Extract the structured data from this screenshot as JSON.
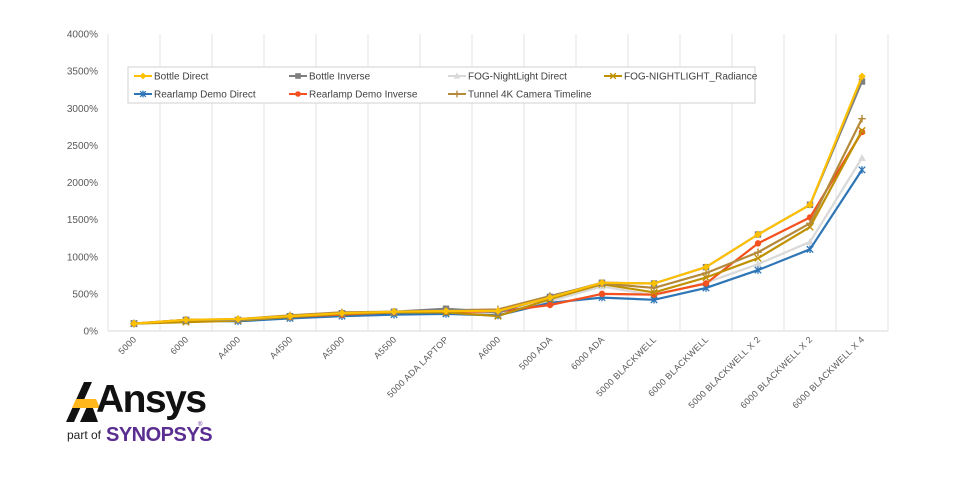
{
  "chart_data": {
    "type": "line",
    "categories": [
      "5000",
      "6000",
      "A4000",
      "A4500",
      "A5000",
      "A5500",
      "5000 ADA LAPTOP",
      "A6000",
      "5000 ADA",
      "6000 ADA",
      "5000 BLACKWELL",
      "6000 BLACKWELL",
      "5000 BLACKWELL X 2",
      "6000 BLACKWELL X 2",
      "6000 BLACKWELL X 4"
    ],
    "ylim": [
      0,
      4000
    ],
    "yticks": [
      "0%",
      "500%",
      "1000%",
      "1500%",
      "2000%",
      "2500%",
      "3000%",
      "3500%",
      "4000%"
    ],
    "ytick_values": [
      0,
      500,
      1000,
      1500,
      2000,
      2500,
      3000,
      3500,
      4000
    ],
    "grid": "vertical",
    "legend_position": "top-left",
    "series": [
      {
        "name": "Bottle Direct",
        "color": "#ffc000",
        "marker": "diamond",
        "values": [
          100,
          150,
          160,
          200,
          240,
          260,
          270,
          270,
          450,
          650,
          640,
          860,
          1300,
          1700,
          3430
        ]
      },
      {
        "name": "Bottle Inverse",
        "color": "#7f7f7f",
        "marker": "square",
        "values": [
          100,
          150,
          150,
          200,
          240,
          260,
          300,
          250,
          460,
          650,
          640,
          860,
          1300,
          1700,
          3360
        ]
      },
      {
        "name": "FOG-NightLight Direct",
        "color": "#d9d9d9",
        "marker": "triangle",
        "values": [
          100,
          130,
          140,
          180,
          220,
          240,
          260,
          230,
          400,
          600,
          480,
          650,
          900,
          1200,
          2330
        ]
      },
      {
        "name": "FOG-NIGHTLIGHT_Radiance",
        "color": "#bf9000",
        "marker": "x",
        "values": [
          100,
          120,
          140,
          190,
          230,
          250,
          250,
          200,
          430,
          630,
          520,
          720,
          980,
          1400,
          2700
        ]
      },
      {
        "name": "Rearlamp Demo Direct",
        "color": "#2e75b6",
        "marker": "star",
        "values": [
          100,
          140,
          130,
          170,
          200,
          220,
          230,
          210,
          380,
          450,
          420,
          580,
          820,
          1100,
          2170
        ]
      },
      {
        "name": "Rearlamp Demo Inverse",
        "color": "#f4511e",
        "marker": "circle",
        "values": [
          100,
          150,
          150,
          190,
          220,
          250,
          260,
          260,
          350,
          500,
          490,
          640,
          1180,
          1530,
          2680
        ]
      },
      {
        "name": "Tunnel 4K Camera Timeline",
        "color": "#b5893a",
        "marker": "plus",
        "values": [
          100,
          150,
          160,
          210,
          250,
          260,
          280,
          290,
          470,
          640,
          580,
          780,
          1060,
          1450,
          2860
        ]
      }
    ]
  },
  "brand": {
    "logo_word": "Ansys",
    "part_of": "part of",
    "parent": "SYNOPSYS",
    "registered": "®"
  }
}
